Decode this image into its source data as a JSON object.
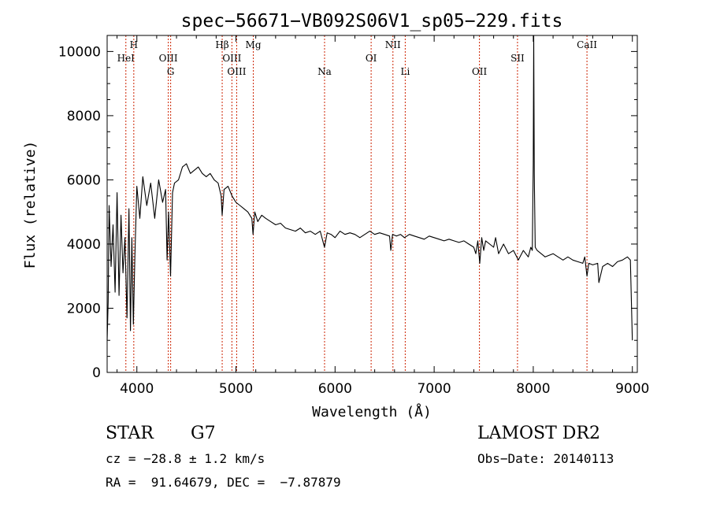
{
  "chart_data": {
    "type": "line",
    "title": "spec−56671−VB092S06V1_sp05−229.fits",
    "xlabel": "Wavelength (Å)",
    "ylabel": "Flux (relative)",
    "xlim": [
      3700,
      9050
    ],
    "ylim": [
      0,
      10500
    ],
    "xticks": [
      4000,
      5000,
      6000,
      7000,
      8000,
      9000
    ],
    "yticks": [
      0,
      2000,
      4000,
      6000,
      8000,
      10000
    ],
    "grid": false,
    "line_color": "#000000",
    "marker_color": "#cc2200",
    "series": [
      {
        "x": [
          3700,
          3710,
          3720,
          3740,
          3760,
          3780,
          3800,
          3820,
          3840,
          3860,
          3880,
          3900,
          3920,
          3935,
          3950,
          3965,
          3980,
          4000,
          4030,
          4060,
          4100,
          4140,
          4180,
          4220,
          4260,
          4290,
          4305,
          4320,
          4340,
          4360,
          4380,
          4420,
          4460,
          4500,
          4540,
          4580,
          4620,
          4660,
          4700,
          4740,
          4780,
          4820,
          4850,
          4861,
          4880,
          4920,
          4960,
          5000,
          5040,
          5080,
          5120,
          5160,
          5172,
          5190,
          5220,
          5260,
          5300,
          5350,
          5400,
          5450,
          5500,
          5550,
          5600,
          5650,
          5700,
          5750,
          5800,
          5850,
          5893,
          5920,
          5960,
          6000,
          6050,
          6100,
          6150,
          6200,
          6250,
          6300,
          6350,
          6400,
          6450,
          6500,
          6550,
          6563,
          6580,
          6620,
          6660,
          6700,
          6750,
          6800,
          6850,
          6900,
          6950,
          7000,
          7050,
          7100,
          7150,
          7200,
          7250,
          7300,
          7350,
          7400,
          7420,
          7440,
          7460,
          7480,
          7500,
          7520,
          7560,
          7600,
          7620,
          7650,
          7700,
          7750,
          7800,
          7850,
          7900,
          7950,
          7975,
          7990,
          8000,
          8005,
          8010,
          8020,
          8040,
          8080,
          8120,
          8160,
          8200,
          8250,
          8300,
          8350,
          8400,
          8450,
          8500,
          8520,
          8542,
          8560,
          8600,
          8650,
          8662,
          8700,
          8750,
          8800,
          8850,
          8900,
          8950,
          8980,
          9000
        ],
        "y": [
          1000,
          2200,
          5200,
          3300,
          4600,
          2500,
          5600,
          2400,
          4900,
          3100,
          4200,
          1700,
          5100,
          1300,
          4200,
          1500,
          3600,
          5800,
          4800,
          6100,
          5200,
          5900,
          4800,
          6000,
          5300,
          5700,
          3500,
          5000,
          3000,
          5600,
          5900,
          6000,
          6400,
          6500,
          6200,
          6300,
          6400,
          6200,
          6100,
          6200,
          6000,
          5900,
          5500,
          4900,
          5700,
          5800,
          5500,
          5300,
          5200,
          5100,
          5000,
          4800,
          4300,
          5000,
          4700,
          4900,
          4800,
          4700,
          4600,
          4650,
          4500,
          4450,
          4400,
          4500,
          4350,
          4400,
          4300,
          4400,
          3900,
          4350,
          4300,
          4200,
          4400,
          4300,
          4350,
          4300,
          4200,
          4300,
          4400,
          4300,
          4350,
          4300,
          4250,
          3800,
          4300,
          4250,
          4300,
          4200,
          4300,
          4250,
          4200,
          4150,
          4250,
          4200,
          4150,
          4100,
          4150,
          4100,
          4050,
          4100,
          4000,
          3900,
          3700,
          4100,
          3400,
          4200,
          3800,
          4100,
          4000,
          3900,
          4200,
          3700,
          4000,
          3700,
          3800,
          3500,
          3800,
          3600,
          3900,
          3800,
          6500,
          10500,
          6200,
          3900,
          3800,
          3700,
          3600,
          3650,
          3700,
          3600,
          3500,
          3600,
          3500,
          3450,
          3400,
          3600,
          3000,
          3400,
          3350,
          3400,
          2800,
          3300,
          3400,
          3300,
          3450,
          3500,
          3600,
          3500,
          1000
        ]
      }
    ],
    "line_markers": [
      {
        "label": "HeI",
        "wavelength": 3889,
        "row": 2
      },
      {
        "label": "H",
        "wavelength": 3969,
        "row": 1
      },
      {
        "label": "OIII",
        "wavelength": 4317,
        "row": 2
      },
      {
        "label": "G",
        "wavelength": 4341,
        "row": 3
      },
      {
        "label": "Hβ",
        "wavelength": 4861,
        "row": 1
      },
      {
        "label": "OIII",
        "wavelength": 4959,
        "row": 2
      },
      {
        "label": "OIII",
        "wavelength": 5007,
        "row": 3
      },
      {
        "label": "Mg",
        "wavelength": 5175,
        "row": 1
      },
      {
        "label": "Na",
        "wavelength": 5894,
        "row": 3
      },
      {
        "label": "OI",
        "wavelength": 6364,
        "row": 2
      },
      {
        "label": "NII",
        "wavelength": 6584,
        "row": 1
      },
      {
        "label": "Li",
        "wavelength": 6708,
        "row": 3
      },
      {
        "label": "OII",
        "wavelength": 7457,
        "row": 3
      },
      {
        "label": "SII",
        "wavelength": 7841,
        "row": 2
      },
      {
        "label": "CaII",
        "wavelength": 8542,
        "row": 1
      }
    ]
  },
  "info": {
    "class_label": "STAR",
    "subclass_label": "G7",
    "survey": "LAMOST DR2",
    "cz": "cz = −28.8 ± 1.2 km/s",
    "obs_date": "Obs−Date: 20140113",
    "radec": "RA =  91.64679, DEC =  −7.87879"
  }
}
